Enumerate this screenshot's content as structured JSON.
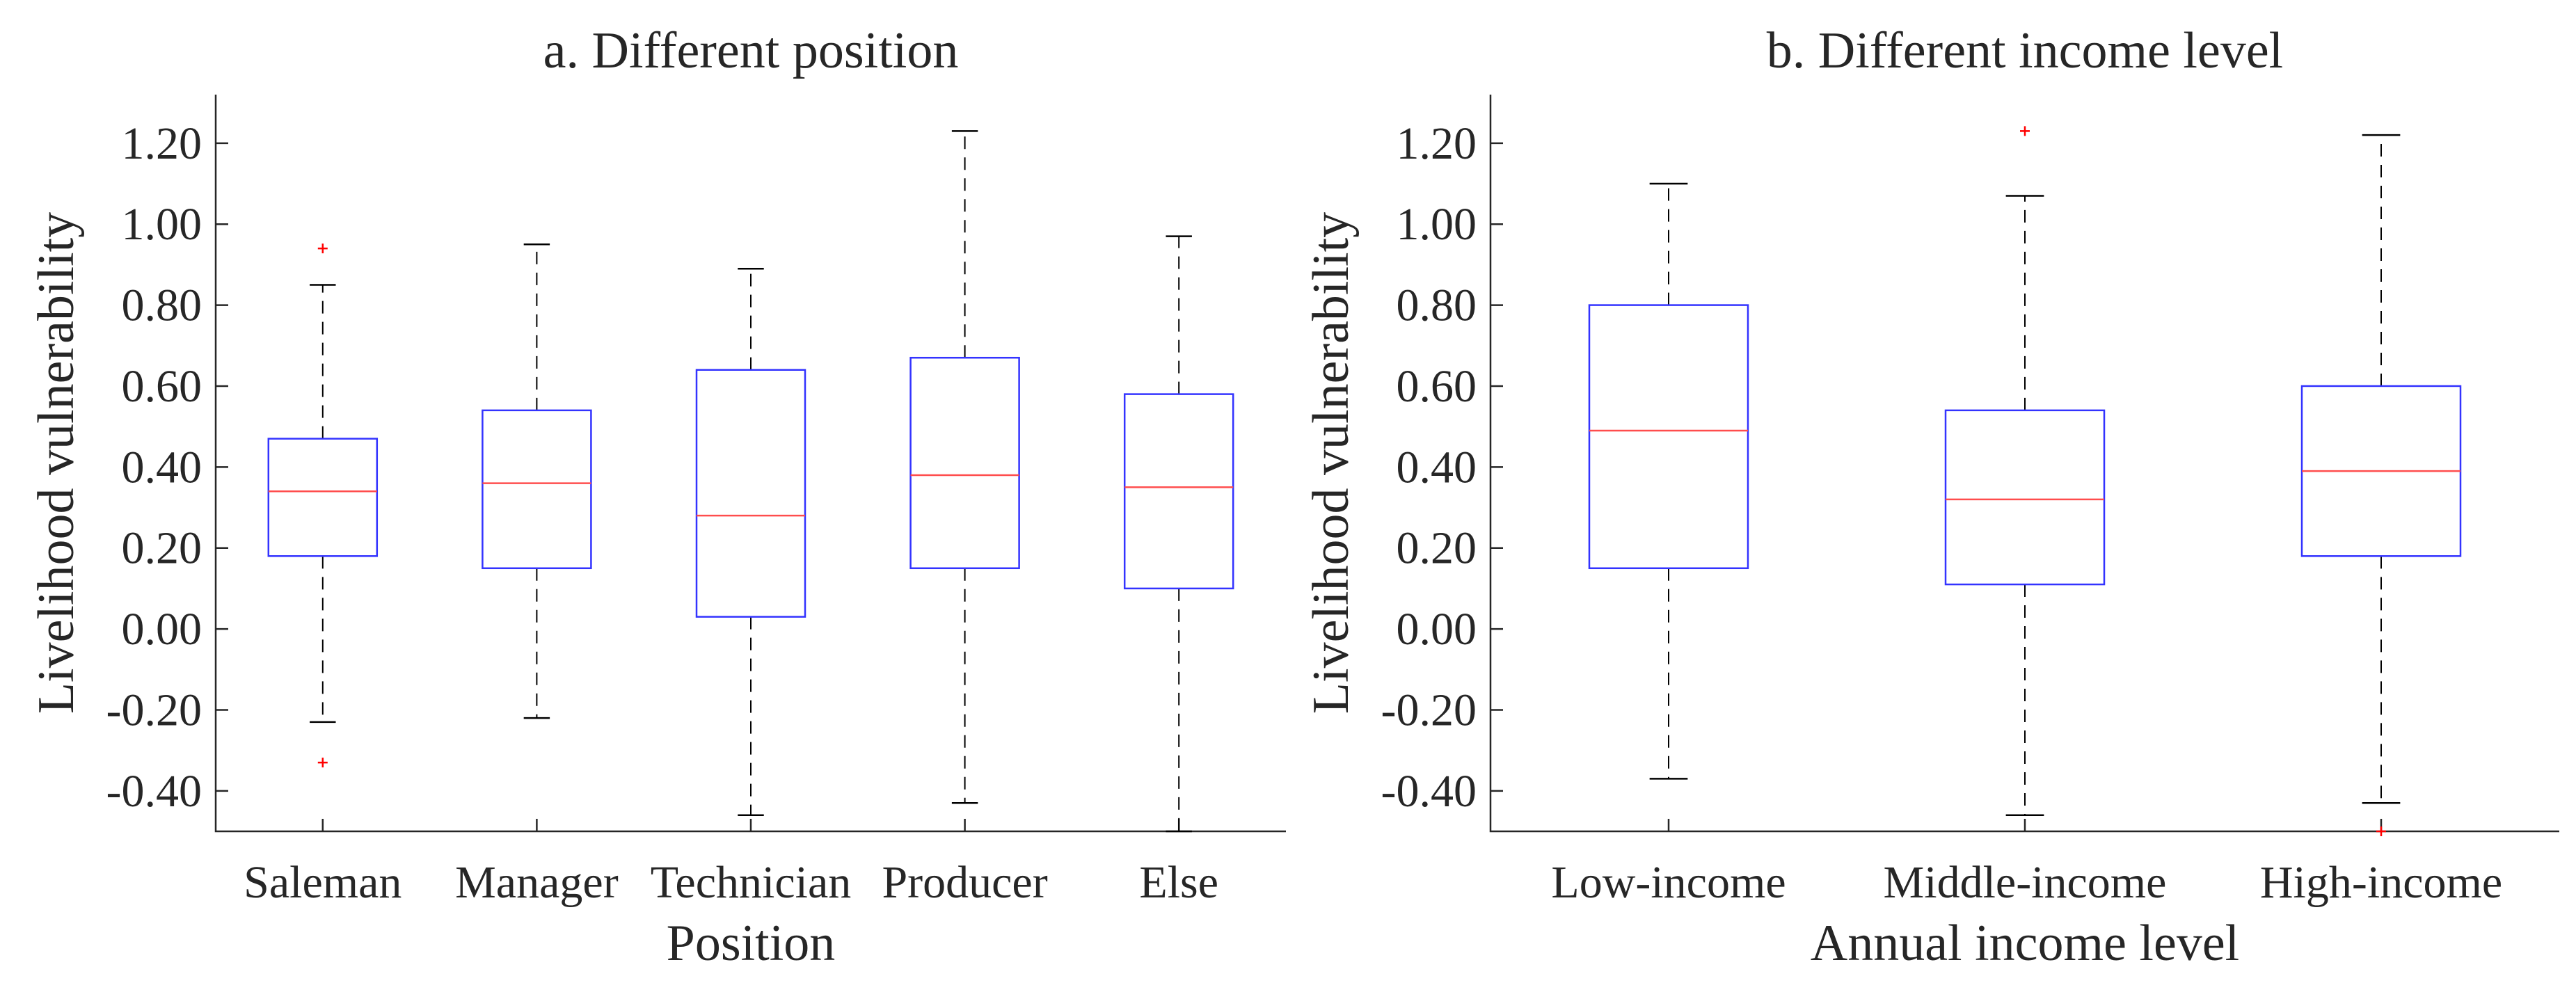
{
  "chart_data": [
    {
      "type": "boxplot",
      "title": "a. Different position",
      "xlabel": "Position",
      "ylabel": "Livelihood vulnerability",
      "ylim": [
        -0.5,
        1.32
      ],
      "yticks": [
        -0.4,
        -0.2,
        0.0,
        0.2,
        0.4,
        0.6,
        0.8,
        1.0,
        1.2
      ],
      "ytick_labels": [
        "-0.40",
        "-0.20",
        "0.00",
        "0.20",
        "0.40",
        "0.60",
        "0.80",
        "1.00",
        "1.20"
      ],
      "categories": [
        "Saleman",
        "Manager",
        "Technician",
        "Producer",
        "Else"
      ],
      "boxes": [
        {
          "whisker_low": -0.23,
          "q1": 0.18,
          "median": 0.34,
          "q3": 0.47,
          "whisker_high": 0.85,
          "outliers": [
            0.94,
            -0.33
          ]
        },
        {
          "whisker_low": -0.22,
          "q1": 0.15,
          "median": 0.36,
          "q3": 0.54,
          "whisker_high": 0.95,
          "outliers": []
        },
        {
          "whisker_low": -0.46,
          "q1": 0.03,
          "median": 0.28,
          "q3": 0.64,
          "whisker_high": 0.89,
          "outliers": []
        },
        {
          "whisker_low": -0.43,
          "q1": 0.15,
          "median": 0.38,
          "q3": 0.67,
          "whisker_high": 1.23,
          "outliers": []
        },
        {
          "whisker_low": -0.5,
          "q1": 0.1,
          "median": 0.35,
          "q3": 0.58,
          "whisker_high": 0.97,
          "outliers": []
        }
      ],
      "colors": {
        "box": "#3333ff",
        "median": "#ff4d4d",
        "whisker": "#000000",
        "outlier": "#ff0000",
        "axis": "#262626"
      }
    },
    {
      "type": "boxplot",
      "title": "b. Different income level",
      "xlabel": "Annual income level",
      "ylabel": "Livelihood vulnerability",
      "ylim": [
        -0.5,
        1.32
      ],
      "yticks": [
        -0.4,
        -0.2,
        0.0,
        0.2,
        0.4,
        0.6,
        0.8,
        1.0,
        1.2
      ],
      "ytick_labels": [
        "-0.40",
        "-0.20",
        "0.00",
        "0.20",
        "0.40",
        "0.60",
        "0.80",
        "1.00",
        "1.20"
      ],
      "categories": [
        "Low-income",
        "Middle-income",
        "High-income"
      ],
      "boxes": [
        {
          "whisker_low": -0.37,
          "q1": 0.15,
          "median": 0.49,
          "q3": 0.8,
          "whisker_high": 1.1,
          "outliers": []
        },
        {
          "whisker_low": -0.46,
          "q1": 0.11,
          "median": 0.32,
          "q3": 0.54,
          "whisker_high": 1.07,
          "outliers": [
            1.23
          ]
        },
        {
          "whisker_low": -0.43,
          "q1": 0.18,
          "median": 0.39,
          "q3": 0.6,
          "whisker_high": 1.22,
          "outliers": [
            -0.5
          ]
        }
      ],
      "colors": {
        "box": "#3333ff",
        "median": "#ff4d4d",
        "whisker": "#000000",
        "outlier": "#ff0000",
        "axis": "#262626"
      }
    }
  ]
}
